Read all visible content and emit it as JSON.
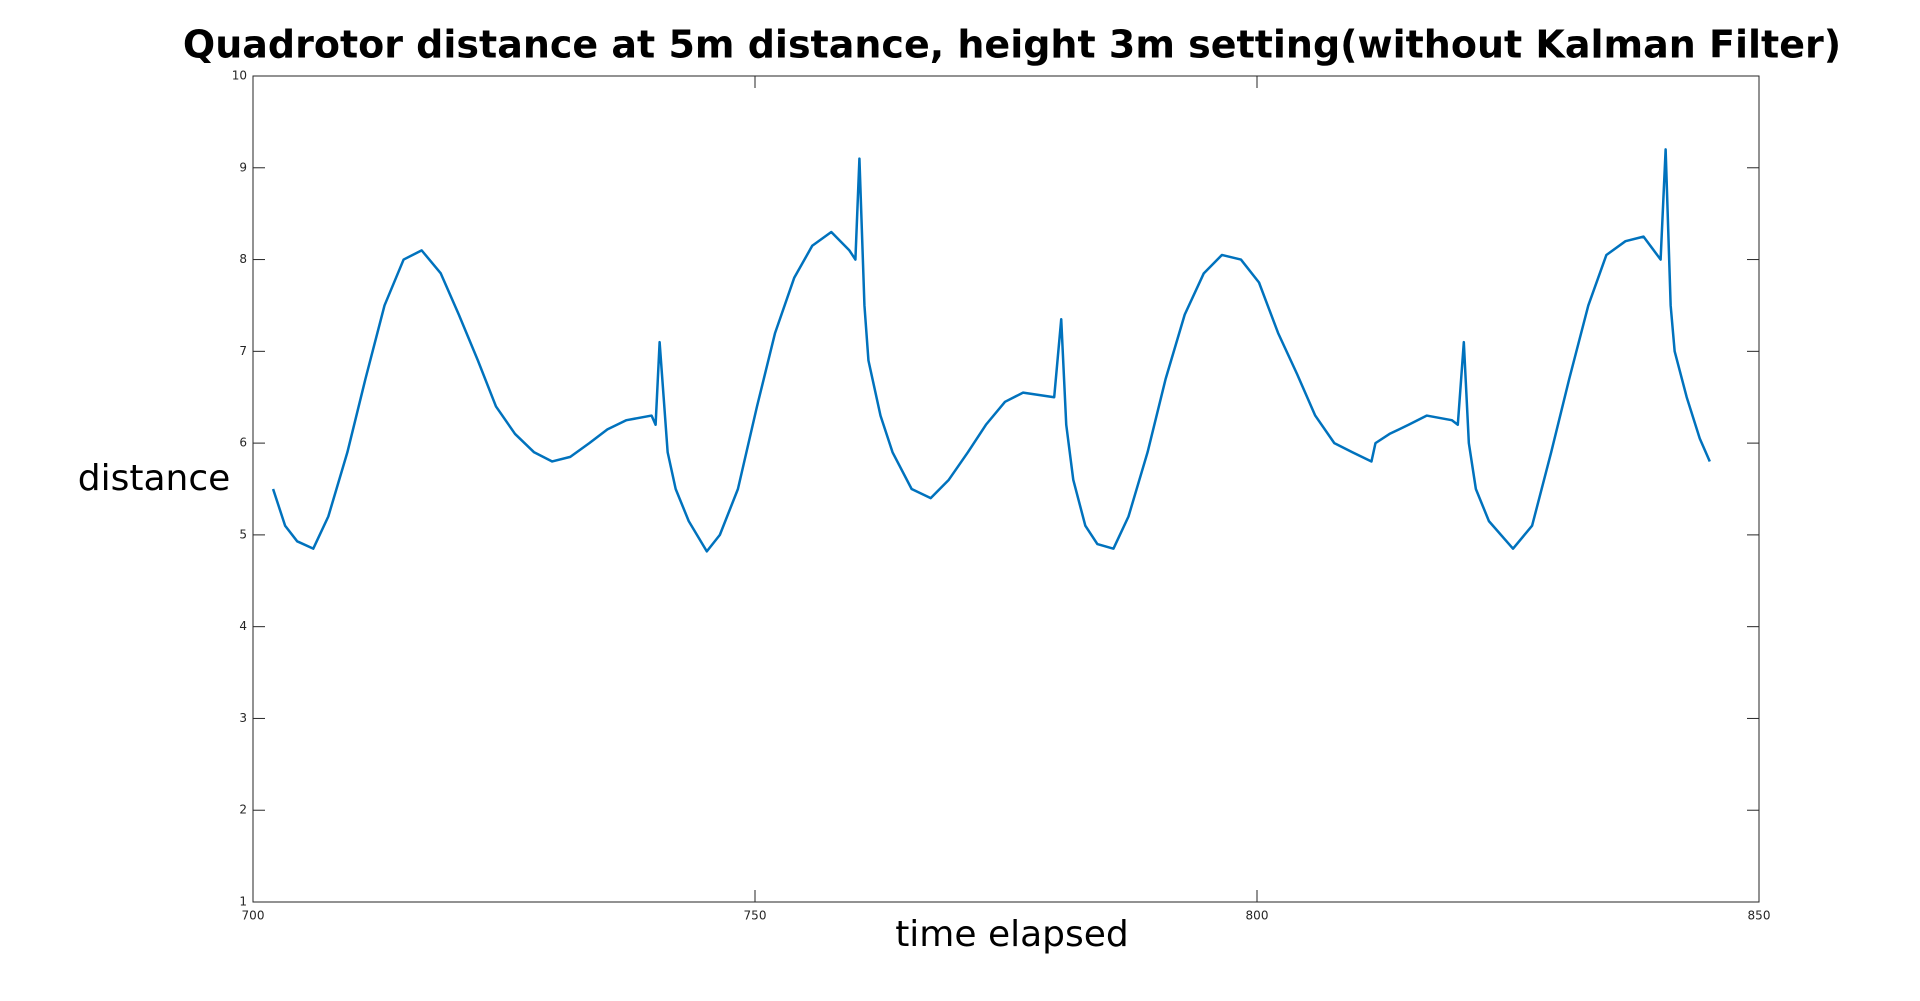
{
  "chart_data": {
    "type": "line",
    "title": "Quadrotor distance at 5m distance, height 3m setting(without Kalman Filter)",
    "xlabel": "time elapsed",
    "ylabel": "distance",
    "x": [
      702,
      703.2,
      704.4,
      706,
      707.5,
      709.4,
      711.2,
      713.1,
      715,
      716.8,
      718.7,
      720.5,
      722.4,
      724.2,
      726.1,
      728,
      729.8,
      731.6,
      733.5,
      735.3,
      737.2,
      739.7,
      740.1,
      740.5,
      740.9,
      741.3,
      742.1,
      743.4,
      745.2,
      746.5,
      748.3,
      750.2,
      752,
      753.9,
      755.7,
      757.6,
      759.4,
      760,
      760.4,
      760.9,
      761.3,
      762.5,
      763.7,
      765.6,
      767.5,
      769.3,
      771.2,
      773,
      774.9,
      776.7,
      779.8,
      780.5,
      781,
      781.7,
      782.9,
      784.1,
      785.7,
      787.2,
      789.1,
      790.9,
      792.8,
      794.7,
      796.5,
      798.4,
      800.2,
      802.1,
      804,
      805.8,
      807.7,
      809.5,
      811.4,
      811.8,
      813.2,
      815.1,
      816.9,
      819.4,
      820,
      820.6,
      821.1,
      821.8,
      823.1,
      825.5,
      827.4,
      829.3,
      831.1,
      833,
      834.8,
      836.7,
      838.5,
      840.2,
      840.7,
      841.2,
      841.6,
      842.8,
      844.1,
      845.1
    ],
    "series": [
      {
        "name": "distance",
        "color": "#0072bd",
        "values": [
          5.5,
          5.1,
          4.93,
          4.85,
          5.2,
          5.9,
          6.7,
          7.5,
          8.0,
          8.1,
          7.85,
          7.4,
          6.9,
          6.4,
          6.1,
          5.9,
          5.8,
          5.85,
          6.0,
          6.15,
          6.25,
          6.3,
          6.2,
          7.1,
          6.5,
          5.9,
          5.5,
          5.15,
          4.82,
          5.0,
          5.5,
          6.4,
          7.2,
          7.8,
          8.15,
          8.3,
          8.1,
          8.0,
          9.1,
          7.5,
          6.9,
          6.3,
          5.9,
          5.5,
          5.4,
          5.6,
          5.9,
          6.2,
          6.45,
          6.55,
          6.5,
          7.35,
          6.2,
          5.6,
          5.1,
          4.9,
          4.85,
          5.2,
          5.9,
          6.7,
          7.4,
          7.85,
          8.05,
          8.0,
          7.75,
          7.2,
          6.75,
          6.3,
          6.0,
          5.9,
          5.8,
          6.0,
          6.1,
          6.2,
          6.3,
          6.25,
          6.2,
          7.1,
          6.0,
          5.5,
          5.15,
          4.85,
          5.1,
          5.9,
          6.7,
          7.5,
          8.05,
          8.2,
          8.25,
          8.0,
          9.2,
          7.5,
          7.0,
          6.5,
          6.05,
          5.8
        ]
      }
    ],
    "xlim": [
      700,
      850
    ],
    "xticks": [
      700,
      750,
      800,
      850
    ],
    "ylim": [
      1,
      10
    ],
    "yticks": [
      1,
      2,
      3,
      4,
      5,
      6,
      7,
      8,
      9,
      10
    ]
  }
}
